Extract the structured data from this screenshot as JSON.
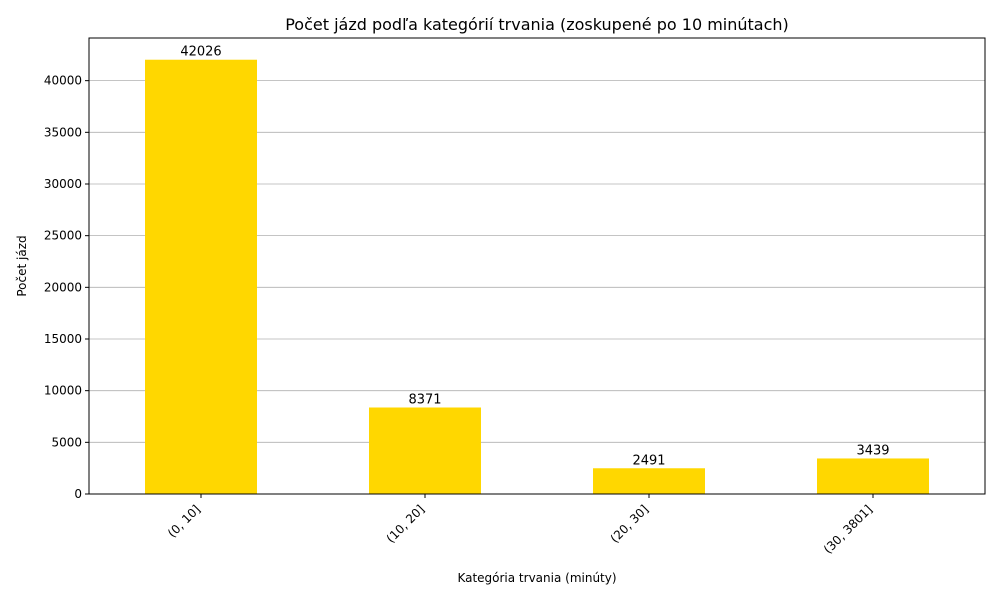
{
  "chart_data": {
    "type": "bar",
    "title": "Počet jázd podľa kategórií trvania (zoskupené po 10 minútach)",
    "xlabel": "Kategória trvania (minúty)",
    "ylabel": "Počet jázd",
    "categories": [
      "(0, 10]",
      "(10, 20]",
      "(20, 30]",
      "(30, 3801]"
    ],
    "values": [
      42026,
      8371,
      2491,
      3439
    ],
    "value_labels": [
      "42026",
      "8371",
      "2491",
      "3439"
    ],
    "ylim": [
      0,
      44128
    ],
    "yticks": [
      0,
      5000,
      10000,
      15000,
      20000,
      25000,
      30000,
      35000,
      40000
    ],
    "ytick_labels": [
      "0",
      "5000",
      "10000",
      "15000",
      "20000",
      "25000",
      "30000",
      "35000",
      "40000"
    ],
    "grid": true,
    "grid_axis": "y",
    "bar_color": "#FFD700",
    "grid_color": "#b0b0b0"
  }
}
